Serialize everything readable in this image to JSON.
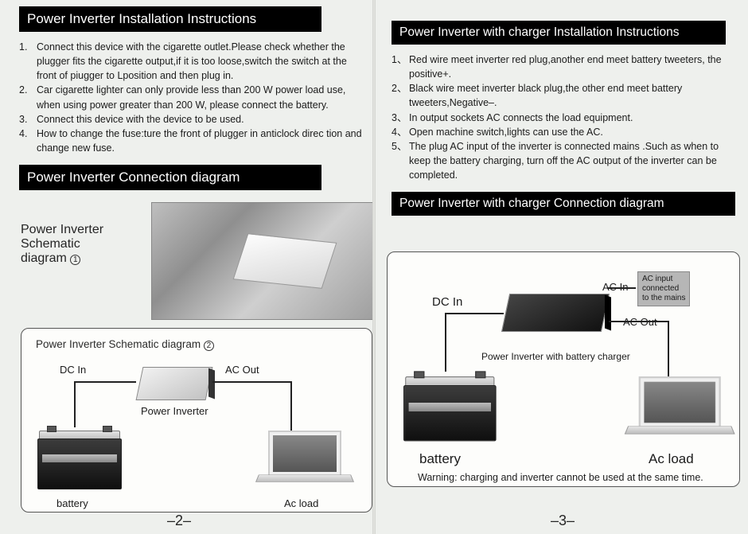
{
  "left": {
    "title1": "Power Inverter Installation Instructions",
    "instructions": [
      {
        "n": "1.",
        "t": "Connect this device with the cigarette outlet.Please check whether the plugger fits the cigarette output,if it is too loose,switch the switch at the front of piugger to Lposition and then plug in."
      },
      {
        "n": "2.",
        "t": "Car cigarette lighter can only provide less than 200 W power load use, when using power greater than 200 W, please connect the battery."
      },
      {
        "n": "3.",
        "t": "Connect this device with the device to be used."
      },
      {
        "n": "4.",
        "t": "How to change the fuse:ture the front of plugger in anticlock direc tion and change new fuse."
      }
    ],
    "title2": "Power Inverter Connection diagram",
    "schem1a": "Power Inverter",
    "schem1b": "Schematic",
    "schem1c": "diagram",
    "schem2": "Power Inverter Schematic diagram",
    "labels": {
      "dcin": "DC In",
      "acout": "AC Out",
      "inverter": "Power Inverter",
      "battery": "battery",
      "acload": "Ac load"
    },
    "pagenum": "–2–"
  },
  "right": {
    "title1": "Power Inverter with charger Installation Instructions",
    "instructions": [
      {
        "n": "1、",
        "t": "Red wire meet inverter red plug,another end meet battery tweeters, the positive+."
      },
      {
        "n": "2、",
        "t": "Black wire meet inverter black plug,the other end meet battery tweeters,Negative–."
      },
      {
        "n": "3、",
        "t": "In output sockets AC connects the load equipment."
      },
      {
        "n": "4、",
        "t": "Open machine switch,lights can use the AC."
      },
      {
        "n": "5、",
        "t": "The plug AC  input of the inverter is connected mains .Such as when to keep the battery charging, turn off the AC output of the inverter can be completed."
      }
    ],
    "title2": "Power Inverter with charger Connection diagram",
    "labels": {
      "dcin": "DC In",
      "acin": "AC In",
      "callout": "AC input\nconnected\nto the mains",
      "acout": "AC Out",
      "caption": "Power Inverter with battery charger",
      "battery": "battery",
      "acload": "Ac load"
    },
    "warning": "Warning: charging and inverter cannot be used at the same time.",
    "pagenum": "–3–"
  },
  "colors": {
    "bg": "#eef0ed",
    "bar_bg": "#000000",
    "bar_fg": "#ffffff",
    "text": "#1b1b1b",
    "frame": "#555555"
  }
}
